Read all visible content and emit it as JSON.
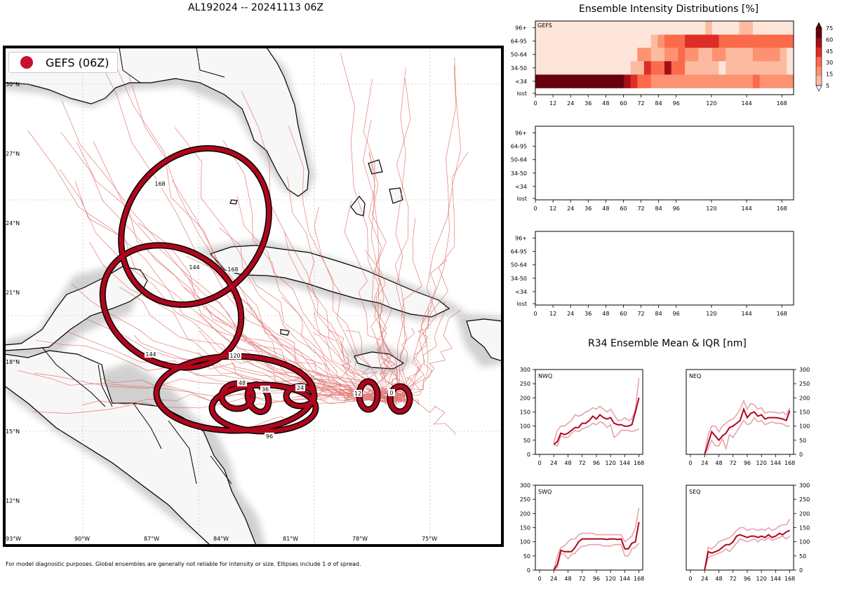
{
  "header": {
    "title": "AL192024 -- 20241113 06Z"
  },
  "footer": {
    "note": "For model diagnostic purposes. Global ensembles are generally not reliable for intensity or size. Ellipses include 1 σ of spread."
  },
  "colors": {
    "ellipse": "#c8102e",
    "track": "#d9534f",
    "land": "#d3d3d3",
    "water": "#ffffff"
  },
  "map": {
    "legend_label": "GEFS (06Z)",
    "lat_labels": [
      "30°N",
      "27°N",
      "24°N",
      "21°N",
      "18°N",
      "15°N",
      "12°N"
    ],
    "lon_labels": [
      "93°W",
      "90°W",
      "87°W",
      "84°W",
      "81°W",
      "78°W",
      "75°W"
    ],
    "ellipse_labels": [
      "0",
      "12",
      "24",
      "36",
      "48",
      "96",
      "120",
      "144",
      "168"
    ]
  },
  "chart_data": [
    {
      "type": "heatmap",
      "title": "Ensemble Intensity Distributions [%]",
      "panel_label": "GEFS",
      "y_categories": [
        "96+",
        "64-95",
        "50-64",
        "34-50",
        "<34",
        "lost"
      ],
      "x_ticks": [
        "0",
        "12",
        "24",
        "36",
        "48",
        "60",
        "72",
        "84",
        "96",
        "120",
        "144",
        "168"
      ],
      "colorbar_ticks": [
        "75",
        "60",
        "45",
        "30",
        "15",
        "5"
      ],
      "colorbar_colors": [
        "#fee5d9",
        "#fcbba1",
        "#fc9272",
        "#fb6a4a",
        "#de2d26",
        "#a50f15",
        "#67000d"
      ]
    },
    {
      "type": "heatmap",
      "y_categories": [
        "96+",
        "64-95",
        "50-64",
        "34-50",
        "<34",
        "lost"
      ],
      "x_ticks": [
        "0",
        "12",
        "24",
        "36",
        "48",
        "60",
        "72",
        "84",
        "96",
        "120",
        "144",
        "168"
      ]
    },
    {
      "type": "heatmap",
      "y_categories": [
        "96+",
        "64-95",
        "50-64",
        "34-50",
        "<34",
        "lost"
      ],
      "x_ticks": [
        "0",
        "12",
        "24",
        "36",
        "48",
        "60",
        "72",
        "84",
        "96",
        "120",
        "144",
        "168"
      ]
    },
    {
      "type": "line",
      "title": "R34 Ensemble Mean & IQR [nm]",
      "x_ticks": [
        "0",
        "24",
        "48",
        "72",
        "96",
        "120",
        "144",
        "168"
      ],
      "y_ticks": [
        "0",
        "50",
        "100",
        "150",
        "200",
        "250",
        "300"
      ],
      "ylim": [
        0,
        300
      ],
      "panels": [
        {
          "label": "NWQ",
          "x": [
            24,
            30,
            36,
            42,
            48,
            54,
            60,
            66,
            72,
            78,
            84,
            90,
            96,
            102,
            108,
            114,
            120,
            126,
            132,
            138,
            144,
            150,
            156,
            162,
            168
          ],
          "mean": [
            35,
            45,
            75,
            70,
            75,
            85,
            95,
            95,
            110,
            110,
            120,
            135,
            125,
            140,
            130,
            125,
            130,
            110,
            105,
            105,
            100,
            100,
            105,
            150,
            200
          ],
          "q1": [
            35,
            30,
            65,
            60,
            60,
            75,
            85,
            80,
            90,
            95,
            100,
            110,
            105,
            115,
            110,
            95,
            105,
            60,
            70,
            85,
            85,
            85,
            80,
            85,
            90
          ],
          "q3": [
            40,
            85,
            100,
            100,
            110,
            120,
            140,
            135,
            140,
            150,
            155,
            165,
            160,
            170,
            160,
            150,
            160,
            140,
            120,
            120,
            130,
            120,
            125,
            160,
            270
          ]
        },
        {
          "label": "NEQ",
          "x": [
            24,
            30,
            36,
            42,
            48,
            54,
            60,
            66,
            72,
            78,
            84,
            90,
            96,
            102,
            108,
            114,
            120,
            126,
            132,
            138,
            144,
            150,
            156,
            162,
            168
          ],
          "mean": [
            0,
            40,
            80,
            65,
            50,
            65,
            75,
            95,
            100,
            110,
            120,
            160,
            130,
            145,
            150,
            135,
            140,
            125,
            130,
            130,
            130,
            128,
            125,
            120,
            155
          ],
          "q1": [
            0,
            20,
            50,
            30,
            30,
            55,
            20,
            70,
            60,
            80,
            100,
            120,
            105,
            110,
            130,
            115,
            120,
            105,
            110,
            115,
            110,
            110,
            108,
            100,
            100
          ],
          "q3": [
            0,
            70,
            100,
            100,
            80,
            100,
            110,
            120,
            125,
            140,
            160,
            190,
            160,
            180,
            175,
            160,
            165,
            145,
            150,
            150,
            148,
            145,
            150,
            140,
            165
          ]
        },
        {
          "label": "SWQ",
          "x": [
            24,
            30,
            36,
            42,
            48,
            54,
            60,
            66,
            72,
            78,
            84,
            90,
            96,
            102,
            108,
            114,
            120,
            126,
            132,
            138,
            144,
            150,
            156,
            162,
            168
          ],
          "mean": [
            0,
            20,
            70,
            65,
            65,
            65,
            80,
            100,
            110,
            110,
            110,
            110,
            110,
            110,
            110,
            108,
            110,
            110,
            108,
            110,
            75,
            75,
            95,
            100,
            170
          ],
          "q1": [
            0,
            10,
            60,
            55,
            40,
            55,
            60,
            75,
            85,
            85,
            90,
            90,
            90,
            90,
            85,
            85,
            85,
            90,
            90,
            90,
            50,
            50,
            75,
            80,
            95
          ],
          "q3": [
            0,
            50,
            80,
            85,
            100,
            110,
            110,
            125,
            130,
            130,
            130,
            130,
            125,
            125,
            125,
            125,
            125,
            125,
            125,
            125,
            100,
            110,
            120,
            150,
            220
          ]
        },
        {
          "label": "SEQ",
          "x": [
            24,
            30,
            36,
            42,
            48,
            54,
            60,
            66,
            72,
            78,
            84,
            90,
            96,
            102,
            108,
            114,
            120,
            126,
            132,
            138,
            144,
            150,
            156,
            162,
            168
          ],
          "mean": [
            0,
            65,
            60,
            65,
            70,
            80,
            90,
            90,
            100,
            120,
            125,
            120,
            115,
            120,
            120,
            115,
            120,
            115,
            125,
            115,
            120,
            130,
            125,
            135,
            140
          ],
          "q1": [
            0,
            45,
            50,
            55,
            60,
            65,
            75,
            65,
            80,
            95,
            110,
            105,
            100,
            105,
            110,
            100,
            110,
            105,
            115,
            105,
            110,
            115,
            120,
            110,
            120
          ],
          "q3": [
            0,
            80,
            75,
            85,
            100,
            105,
            110,
            115,
            125,
            140,
            150,
            150,
            140,
            145,
            145,
            140,
            145,
            140,
            150,
            140,
            145,
            155,
            160,
            160,
            180
          ]
        }
      ]
    }
  ]
}
